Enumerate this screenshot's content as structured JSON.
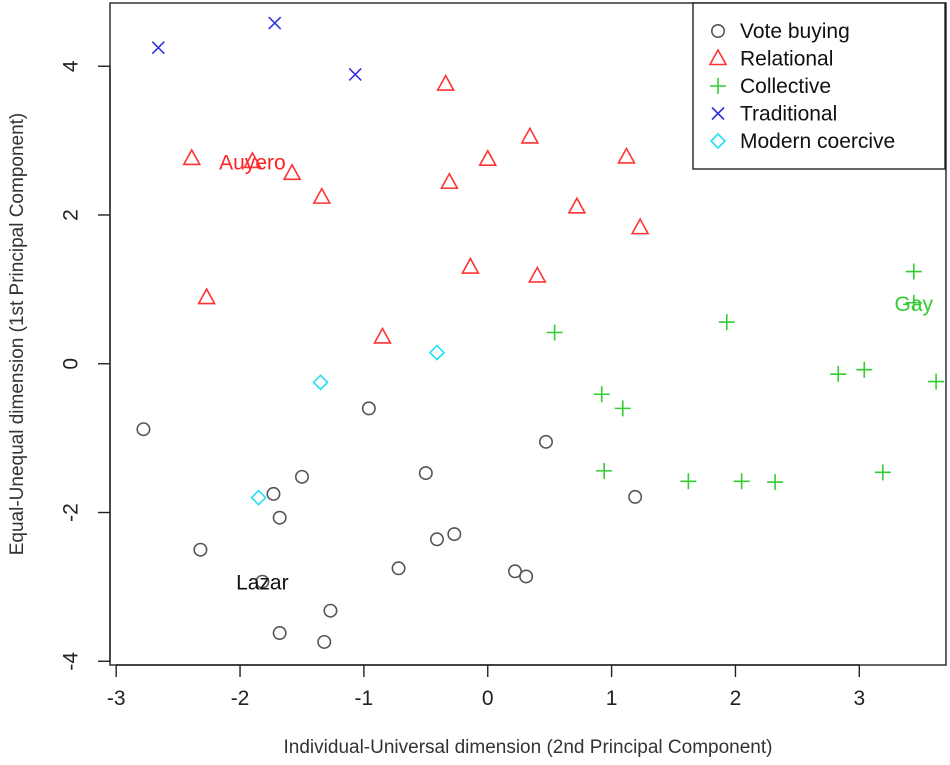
{
  "chart_data": {
    "type": "scatter",
    "title": "",
    "xlabel": "Individual-Universal dimension (2nd Principal Component)",
    "ylabel": "Equal-Unequal dimension (1st Principal Component)",
    "xlim": [
      -3.05,
      3.7
    ],
    "ylim": [
      -4.05,
      4.85
    ],
    "x_ticks": [
      -3,
      -2,
      -1,
      0,
      1,
      2,
      3
    ],
    "y_ticks": [
      -4,
      -2,
      0,
      2,
      4
    ],
    "x_tick_labels": [
      "-3",
      "-2",
      "-1",
      "0",
      "1",
      "2",
      "3"
    ],
    "y_tick_labels": [
      "-4",
      "-2",
      "0",
      "2",
      "4"
    ],
    "grid": false,
    "legend_position": "top-right",
    "series": [
      {
        "name": "Vote buying",
        "marker": "circle",
        "color": "#555555",
        "points": [
          [
            -2.78,
            -0.88
          ],
          [
            -2.32,
            -2.5
          ],
          [
            -1.73,
            -1.75
          ],
          [
            -1.68,
            -2.07
          ],
          [
            -1.5,
            -1.52
          ],
          [
            -1.68,
            -3.62
          ],
          [
            -1.27,
            -3.32
          ],
          [
            -1.32,
            -3.74
          ],
          [
            -0.96,
            -0.6
          ],
          [
            -0.72,
            -2.75
          ],
          [
            -0.5,
            -1.47
          ],
          [
            -0.41,
            -2.36
          ],
          [
            -0.27,
            -2.29
          ],
          [
            0.22,
            -2.79
          ],
          [
            0.31,
            -2.86
          ],
          [
            0.47,
            -1.05
          ],
          [
            1.19,
            -1.79
          ],
          [
            -1.82,
            -2.93
          ]
        ]
      },
      {
        "name": "Relational",
        "marker": "triangle",
        "color": "#ff3333",
        "points": [
          [
            -2.39,
            2.76
          ],
          [
            -2.27,
            0.89
          ],
          [
            -1.58,
            2.56
          ],
          [
            -1.34,
            2.24
          ],
          [
            -0.85,
            0.36
          ],
          [
            -0.34,
            3.76
          ],
          [
            -0.31,
            2.44
          ],
          [
            -0.14,
            1.3
          ],
          [
            0.0,
            2.75
          ],
          [
            0.34,
            3.05
          ],
          [
            0.4,
            1.18
          ],
          [
            0.72,
            2.11
          ],
          [
            1.12,
            2.78
          ],
          [
            1.23,
            1.83
          ],
          [
            -1.9,
            2.72
          ]
        ]
      },
      {
        "name": "Collective",
        "marker": "plus",
        "color": "#33cc33",
        "points": [
          [
            0.54,
            0.42
          ],
          [
            0.92,
            -0.41
          ],
          [
            1.09,
            -0.6
          ],
          [
            0.94,
            -1.44
          ],
          [
            1.62,
            -1.58
          ],
          [
            1.93,
            0.56
          ],
          [
            2.05,
            -1.58
          ],
          [
            2.32,
            -1.59
          ],
          [
            2.83,
            -0.14
          ],
          [
            3.04,
            -0.08
          ],
          [
            3.19,
            -1.46
          ],
          [
            3.44,
            1.24
          ],
          [
            3.62,
            -0.24
          ],
          [
            3.44,
            0.82
          ]
        ]
      },
      {
        "name": "Traditional",
        "marker": "x",
        "color": "#3333dd",
        "points": [
          [
            -2.66,
            4.25
          ],
          [
            -1.72,
            4.58
          ],
          [
            -1.07,
            3.89
          ]
        ]
      },
      {
        "name": "Modern coercive",
        "marker": "diamond",
        "color": "#22e0f0",
        "points": [
          [
            -1.85,
            -1.8
          ],
          [
            -1.35,
            -0.25
          ],
          [
            -0.41,
            0.15
          ]
        ]
      }
    ],
    "annotations": [
      {
        "text": "Auyero",
        "x": -1.9,
        "y": 2.72,
        "color": "#ff2222"
      },
      {
        "text": "Gay",
        "x": 3.44,
        "y": 0.82,
        "color": "#33cc33"
      },
      {
        "text": "Lazar",
        "x": -1.82,
        "y": -2.93,
        "color": "#111111"
      }
    ]
  }
}
